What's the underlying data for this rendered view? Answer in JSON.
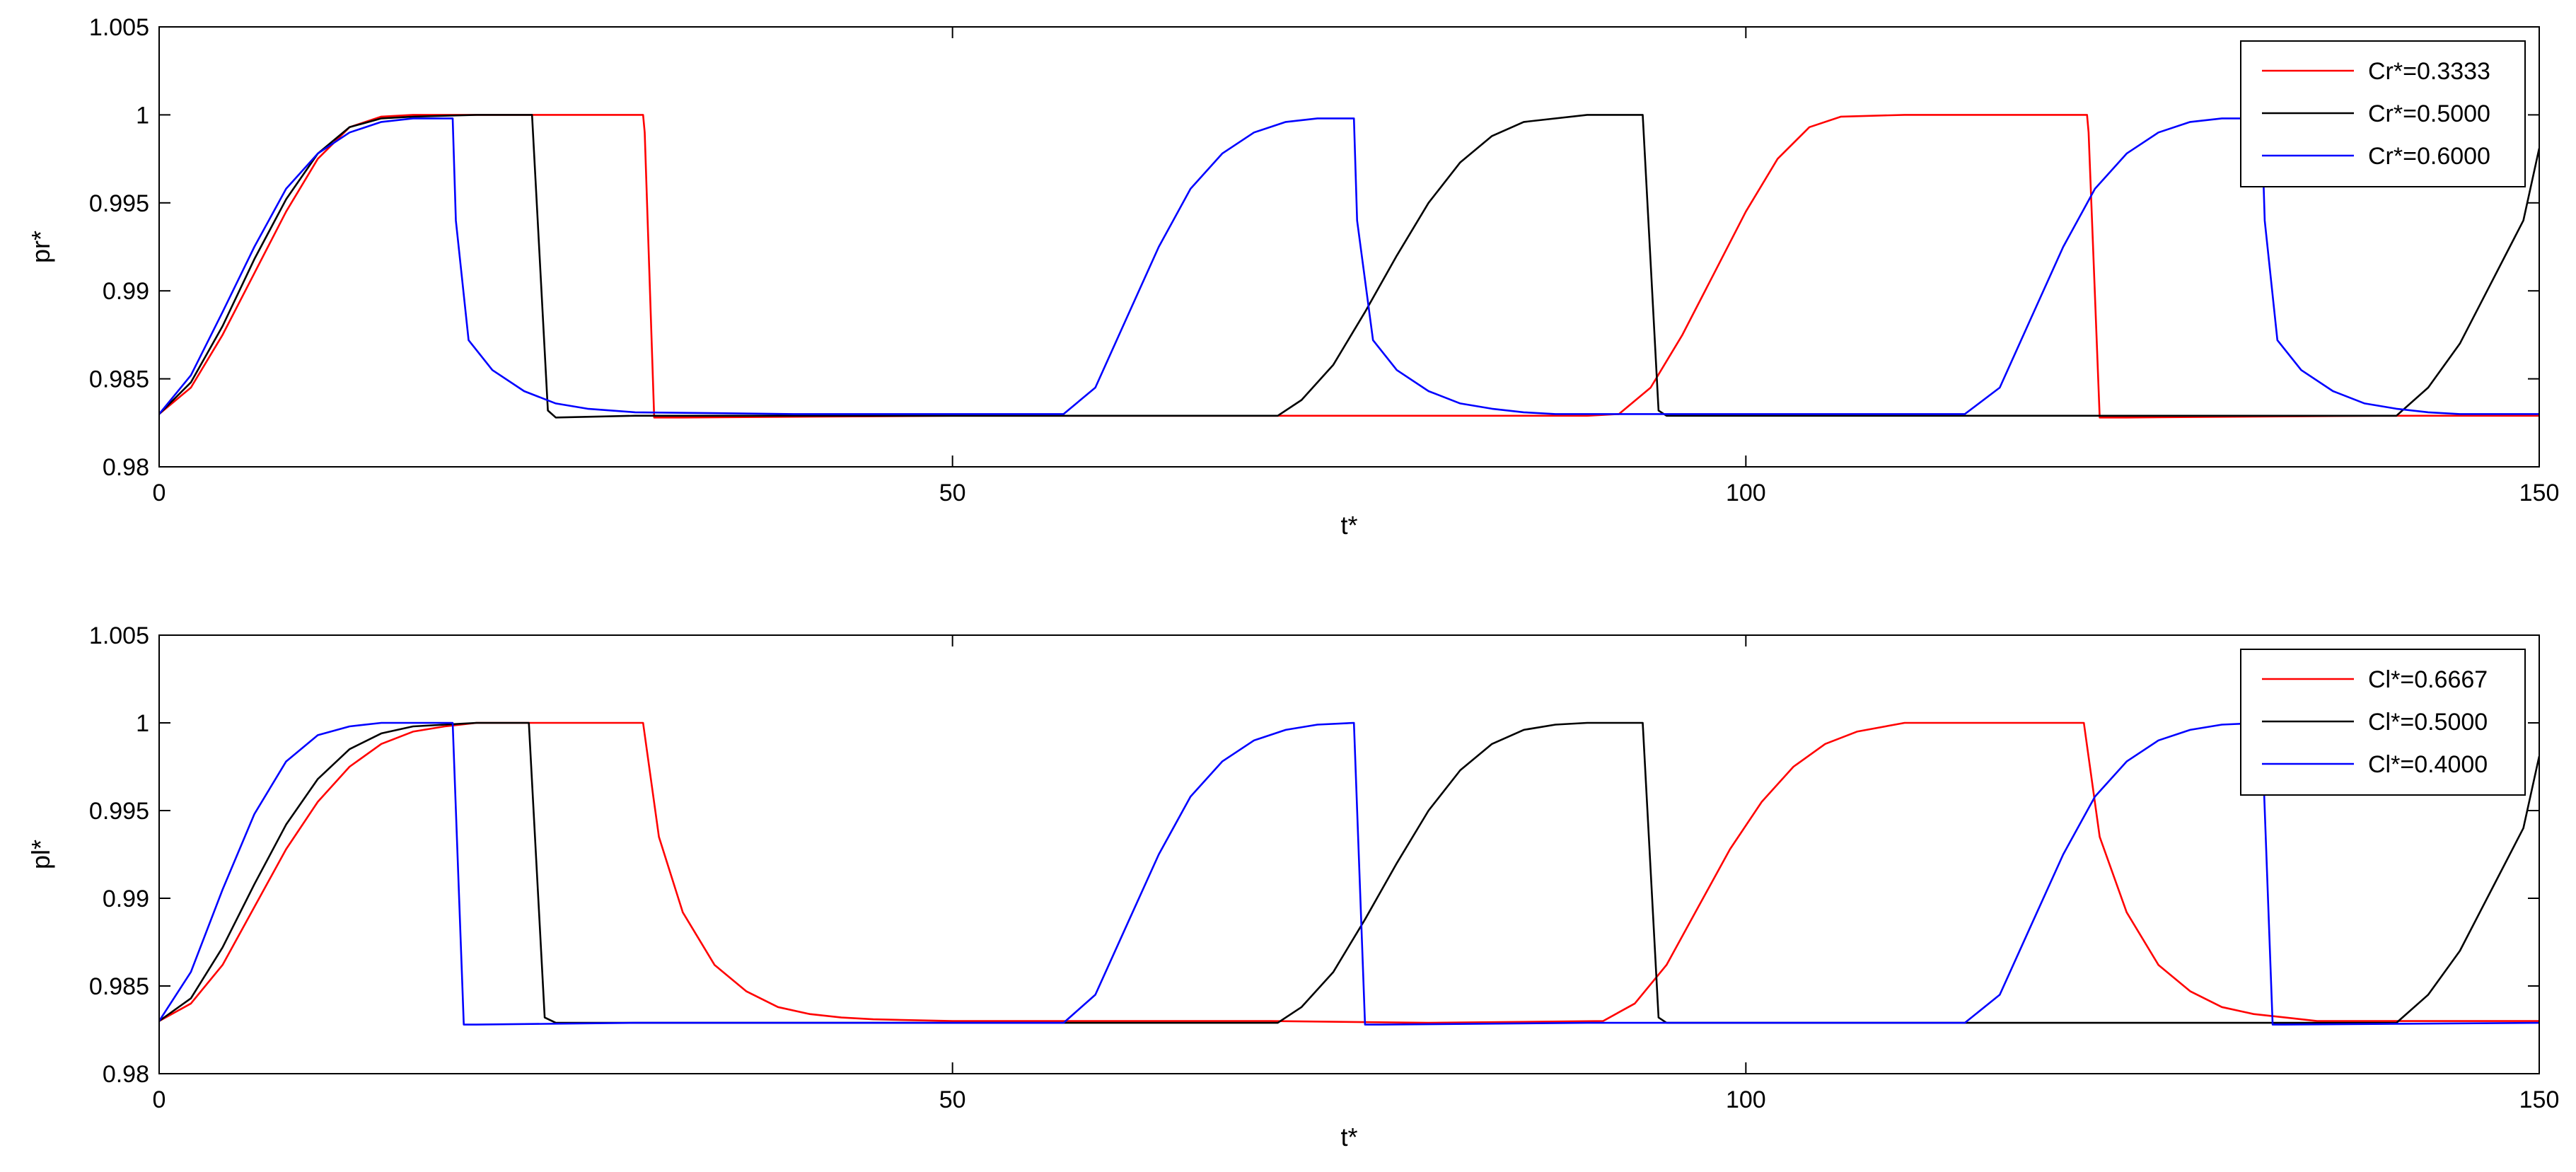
{
  "chart_data": [
    {
      "type": "line",
      "title": "",
      "xlabel": "t*",
      "ylabel": "pr*",
      "xlim": [
        0,
        150
      ],
      "ylim": [
        0.98,
        1.005
      ],
      "xticks": [
        0,
        50,
        100,
        150
      ],
      "yticks": [
        0.98,
        0.985,
        0.99,
        0.995,
        1,
        1.005
      ],
      "xtick_labels": [
        "0",
        "50",
        "100",
        "150"
      ],
      "ytick_labels": [
        "0.98",
        "0.985",
        "0.99",
        "0.995",
        "1",
        "1.005"
      ],
      "grid": false,
      "legend_position": "top-right",
      "series": [
        {
          "name": "Cr*=0.3333",
          "color": "#ff0000",
          "x": [
            0,
            2,
            4,
            6,
            8,
            10,
            12,
            14,
            16,
            20,
            25,
            30.5,
            30.6,
            31.2,
            33,
            50,
            70,
            80,
            90,
            92,
            94,
            96,
            98,
            100,
            102,
            104,
            106,
            110,
            115,
            121.5,
            121.6,
            122.3,
            124,
            140,
            150
          ],
          "y": [
            0.983,
            0.9845,
            0.9875,
            0.991,
            0.9945,
            0.9975,
            0.9993,
            0.9999,
            1.0,
            1.0,
            1.0,
            1.0,
            0.999,
            0.9828,
            0.9828,
            0.9829,
            0.9829,
            0.9829,
            0.9829,
            0.983,
            0.9845,
            0.9875,
            0.991,
            0.9945,
            0.9975,
            0.9993,
            0.9999,
            1.0,
            1.0,
            1.0,
            0.999,
            0.9828,
            0.9828,
            0.9829,
            0.9829
          ]
        },
        {
          "name": "Cr*=0.5000",
          "color": "#000000",
          "x": [
            0,
            2,
            4,
            6,
            8,
            10,
            12,
            14,
            16,
            20,
            23.5,
            24.5,
            25,
            30,
            50,
            70.5,
            72,
            74,
            76,
            78,
            80,
            82,
            84,
            86,
            90,
            93.5,
            94.5,
            95,
            110,
            130,
            141,
            143,
            145,
            147,
            149,
            150
          ],
          "y": [
            0.983,
            0.9848,
            0.988,
            0.9918,
            0.9952,
            0.9978,
            0.9993,
            0.9998,
            0.9999,
            1.0,
            1.0,
            0.9832,
            0.9828,
            0.9829,
            0.9829,
            0.9829,
            0.9838,
            0.9858,
            0.9888,
            0.992,
            0.995,
            0.9973,
            0.9988,
            0.9996,
            1.0,
            1.0,
            0.9832,
            0.9829,
            0.9829,
            0.9829,
            0.9829,
            0.9845,
            0.987,
            0.9905,
            0.994,
            0.9981
          ]
        },
        {
          "name": "Cr*=0.6000",
          "color": "#0000ff",
          "x": [
            0,
            2,
            4,
            6,
            8,
            10,
            12,
            14,
            16,
            18.5,
            18.7,
            19.5,
            21,
            23,
            25,
            27,
            30,
            40,
            57,
            59,
            61,
            63,
            65,
            67,
            69,
            71,
            73,
            75.3,
            75.5,
            76.5,
            78,
            80,
            82,
            84,
            86,
            88,
            100,
            113.8,
            116,
            118,
            120,
            122,
            124,
            126,
            128,
            130,
            132.5,
            132.7,
            133.5,
            135,
            137,
            139,
            141,
            143,
            145,
            150
          ],
          "y": [
            0.983,
            0.9852,
            0.9888,
            0.9925,
            0.9958,
            0.9978,
            0.999,
            0.9996,
            0.9998,
            0.9998,
            0.994,
            0.9872,
            0.9855,
            0.9843,
            0.9836,
            0.9833,
            0.9831,
            0.983,
            0.983,
            0.9845,
            0.9885,
            0.9925,
            0.9958,
            0.9978,
            0.999,
            0.9996,
            0.9998,
            0.9998,
            0.994,
            0.9872,
            0.9855,
            0.9843,
            0.9836,
            0.9833,
            0.9831,
            0.983,
            0.983,
            0.983,
            0.9845,
            0.9885,
            0.9925,
            0.9958,
            0.9978,
            0.999,
            0.9996,
            0.9998,
            0.9998,
            0.994,
            0.9872,
            0.9855,
            0.9843,
            0.9836,
            0.9833,
            0.9831,
            0.983,
            0.983
          ]
        }
      ]
    },
    {
      "type": "line",
      "title": "",
      "xlabel": "t*",
      "ylabel": "pl*",
      "xlim": [
        0,
        150
      ],
      "ylim": [
        0.98,
        1.005
      ],
      "xticks": [
        0,
        50,
        100,
        150
      ],
      "yticks": [
        0.98,
        0.985,
        0.99,
        0.995,
        1,
        1.005
      ],
      "xtick_labels": [
        "0",
        "50",
        "100",
        "150"
      ],
      "ytick_labels": [
        "0.98",
        "0.985",
        "0.99",
        "0.995",
        "1",
        "1.005"
      ],
      "grid": false,
      "legend_position": "top-right",
      "series": [
        {
          "name": "Cl*=0.6667",
          "color": "#ff0000",
          "x": [
            0,
            2,
            4,
            6,
            8,
            10,
            12,
            14,
            16,
            18,
            20,
            25,
            30.5,
            31.5,
            33,
            35,
            37,
            39,
            41,
            43,
            45,
            50,
            70,
            80,
            91,
            93,
            95,
            97,
            99,
            101,
            103,
            105,
            107,
            110,
            115,
            121.3,
            122.3,
            124,
            126,
            128,
            130,
            132,
            134,
            136,
            150
          ],
          "y": [
            0.983,
            0.984,
            0.9862,
            0.9895,
            0.9928,
            0.9955,
            0.9975,
            0.9988,
            0.9995,
            0.9998,
            1.0,
            1.0,
            1.0,
            0.9935,
            0.9892,
            0.9862,
            0.9847,
            0.9838,
            0.9834,
            0.9832,
            0.9831,
            0.983,
            0.983,
            0.9829,
            0.983,
            0.984,
            0.9862,
            0.9895,
            0.9928,
            0.9955,
            0.9975,
            0.9988,
            0.9995,
            1.0,
            1.0,
            1.0,
            0.9935,
            0.9892,
            0.9862,
            0.9847,
            0.9838,
            0.9834,
            0.9832,
            0.983,
            0.983
          ]
        },
        {
          "name": "Cl*=0.5000",
          "color": "#000000",
          "x": [
            0,
            2,
            4,
            6,
            8,
            10,
            12,
            14,
            16,
            18,
            20,
            23.3,
            24.3,
            25,
            30,
            50,
            70.5,
            72,
            74,
            76,
            78,
            80,
            82,
            84,
            86,
            88,
            90,
            93.5,
            94.5,
            95,
            110,
            130,
            141,
            143,
            145,
            147,
            149,
            150
          ],
          "y": [
            0.983,
            0.9843,
            0.9872,
            0.9908,
            0.9942,
            0.9968,
            0.9985,
            0.9994,
            0.9998,
            0.9999,
            1.0,
            1.0,
            0.9832,
            0.9829,
            0.9829,
            0.9829,
            0.9829,
            0.9838,
            0.9858,
            0.9888,
            0.992,
            0.995,
            0.9973,
            0.9988,
            0.9996,
            0.9999,
            1.0,
            1.0,
            0.9832,
            0.9829,
            0.9829,
            0.9829,
            0.9829,
            0.9845,
            0.987,
            0.9905,
            0.994,
            0.9981
          ]
        },
        {
          "name": "Cl*=0.4000",
          "color": "#0000ff",
          "x": [
            0,
            2,
            4,
            6,
            8,
            10,
            12,
            14,
            16,
            18.5,
            19.2,
            20,
            30,
            50,
            57,
            59,
            61,
            63,
            65,
            67,
            69,
            71,
            73,
            75.3,
            76,
            77,
            90,
            110,
            113.8,
            116,
            118,
            120,
            122,
            124,
            126,
            128,
            130,
            132.5,
            133.2,
            134,
            150
          ],
          "y": [
            0.983,
            0.9858,
            0.9905,
            0.9948,
            0.9978,
            0.9993,
            0.9998,
            1.0,
            1.0,
            1.0,
            0.9828,
            0.9828,
            0.9829,
            0.9829,
            0.9829,
            0.9845,
            0.9885,
            0.9925,
            0.9958,
            0.9978,
            0.999,
            0.9996,
            0.9999,
            1.0,
            0.9828,
            0.9828,
            0.9829,
            0.9829,
            0.9829,
            0.9845,
            0.9885,
            0.9925,
            0.9958,
            0.9978,
            0.999,
            0.9996,
            0.9999,
            1.0,
            0.9828,
            0.9828,
            0.9829
          ]
        }
      ]
    }
  ]
}
